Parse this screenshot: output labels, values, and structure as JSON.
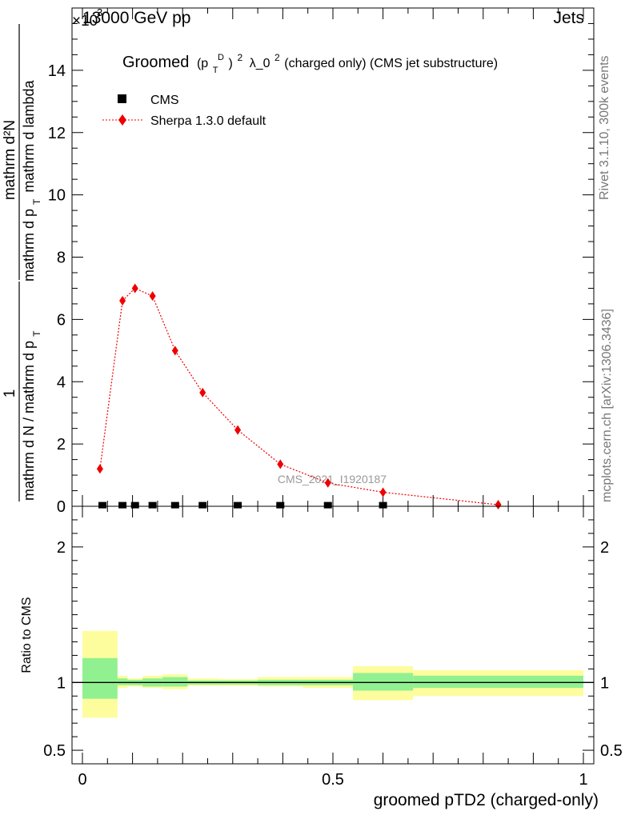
{
  "header": {
    "left": "13000 GeV pp",
    "right": "Jets",
    "exponent": "×10",
    "exponent_power": "3"
  },
  "side_texts": {
    "rivet": "Rivet 3.1.10,  300k events",
    "mcplots": "mcplots.cern.ch [arXiv:1306.3436]"
  },
  "chart_data": [
    {
      "type": "scatter",
      "panel": "main",
      "title": "Groomed (p_T^D)^2 λ_0^2  (charged only) (CMS jet substructure)",
      "title_parts": {
        "prefix": "Groomed",
        "p": "(p",
        "sub": "T",
        "sup_d": "D",
        "close": ")",
        "sup2": "2",
        "lambda": "λ_0",
        "suffix": "  (charged only) (CMS jet substructure)"
      },
      "ylabel": {
        "numerator_lhs": "1",
        "denominator_lhs": "mathrm d N / mathrm d p",
        "numerator_rhs": "mathrm d²N",
        "denominator_rhs_a": "mathrm d p",
        "denominator_rhs_b": "mathrm d lambda",
        "sub": "T"
      },
      "xlim": [
        0,
        1
      ],
      "ylim": [
        0,
        16
      ],
      "y_scale_note": "×10^3",
      "y_ticks": [
        0,
        2,
        4,
        6,
        8,
        10,
        12,
        14
      ],
      "y_tick_labels": [
        "0",
        "2",
        "4",
        "6",
        "8",
        "10",
        "12",
        "14"
      ],
      "watermark": "CMS_2021_I1920187",
      "legend_position": "top-left",
      "series": [
        {
          "name": "CMS",
          "color": "#000000",
          "marker": "square",
          "x": [
            0.04,
            0.08,
            0.105,
            0.14,
            0.185,
            0.24,
            0.31,
            0.395,
            0.49,
            0.6
          ],
          "y": [
            0.01,
            0.01,
            0.01,
            0.01,
            0.01,
            0.01,
            0.01,
            0.01,
            0.01,
            0.01
          ]
        },
        {
          "name": "Sherpa 1.3.0 default",
          "color": "#ee0000",
          "marker": "diamond",
          "line": "dotted",
          "x": [
            0.035,
            0.08,
            0.105,
            0.14,
            0.185,
            0.24,
            0.31,
            0.395,
            0.49,
            0.6,
            0.83
          ],
          "y": [
            1.2,
            6.6,
            7.0,
            6.75,
            5.0,
            3.65,
            2.45,
            1.35,
            0.75,
            0.45,
            0.05
          ]
        }
      ]
    },
    {
      "type": "area",
      "panel": "ratio",
      "ylabel": "Ratio to CMS",
      "xlabel": "groomed pTD2 (charged-only)",
      "xlim": [
        0,
        1
      ],
      "ylim": [
        0.4,
        2.3
      ],
      "x_ticks": [
        0,
        0.5,
        1
      ],
      "x_tick_labels": [
        "0",
        "0.5",
        "1"
      ],
      "y_ticks": [
        0.5,
        1,
        2
      ],
      "y_tick_labels": [
        "0.5",
        "1",
        "2"
      ],
      "bands": [
        {
          "x0": 0.0,
          "x1": 0.07,
          "g": [
            0.88,
            1.18
          ],
          "y": [
            0.74,
            1.38
          ]
        },
        {
          "x0": 0.07,
          "x1": 0.09,
          "g": [
            0.98,
            1.03
          ],
          "y": [
            0.96,
            1.05
          ]
        },
        {
          "x0": 0.09,
          "x1": 0.12,
          "g": [
            0.98,
            1.02
          ],
          "y": [
            0.97,
            1.03
          ]
        },
        {
          "x0": 0.12,
          "x1": 0.16,
          "g": [
            0.97,
            1.03
          ],
          "y": [
            0.96,
            1.05
          ]
        },
        {
          "x0": 0.16,
          "x1": 0.21,
          "g": [
            0.97,
            1.04
          ],
          "y": [
            0.95,
            1.06
          ]
        },
        {
          "x0": 0.21,
          "x1": 0.27,
          "g": [
            0.985,
            1.015
          ],
          "y": [
            0.975,
            1.03
          ]
        },
        {
          "x0": 0.27,
          "x1": 0.35,
          "g": [
            0.985,
            1.015
          ],
          "y": [
            0.975,
            1.025
          ]
        },
        {
          "x0": 0.35,
          "x1": 0.44,
          "g": [
            0.98,
            1.02
          ],
          "y": [
            0.97,
            1.04
          ]
        },
        {
          "x0": 0.44,
          "x1": 0.54,
          "g": [
            0.98,
            1.02
          ],
          "y": [
            0.96,
            1.04
          ]
        },
        {
          "x0": 0.54,
          "x1": 0.66,
          "g": [
            0.94,
            1.07
          ],
          "y": [
            0.87,
            1.12
          ]
        },
        {
          "x0": 0.66,
          "x1": 1.0,
          "g": [
            0.96,
            1.05
          ],
          "y": [
            0.9,
            1.09
          ]
        }
      ],
      "band_colors": {
        "inner": "#91f191",
        "outer": "#fdfd9d"
      }
    }
  ]
}
